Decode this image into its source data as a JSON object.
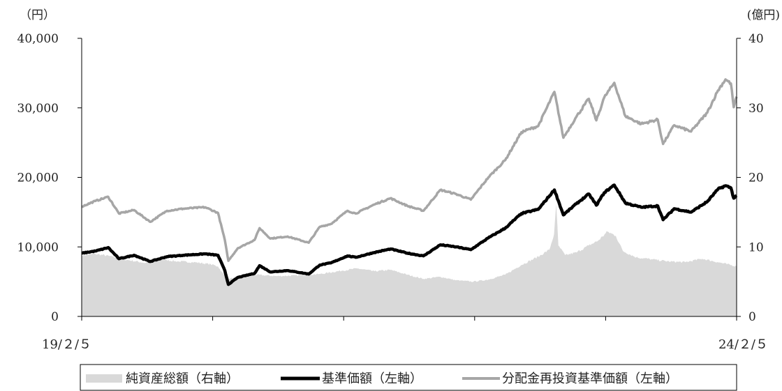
{
  "chart_data": {
    "type": "line",
    "left_axis": {
      "unit": "（円）",
      "ylim": [
        0,
        40000
      ],
      "ticks": [
        "0",
        "10,000",
        "20,000",
        "30,000",
        "40,000"
      ],
      "tick_values": [
        0,
        10000,
        20000,
        30000,
        40000
      ]
    },
    "right_axis": {
      "unit": "(億円)",
      "ylim": [
        0,
        40
      ],
      "ticks": [
        "0",
        "10",
        "20",
        "30",
        "40"
      ],
      "tick_values": [
        0,
        10,
        20,
        30,
        40
      ]
    },
    "x_labels": [
      "19/２/５",
      "24/２/５"
    ],
    "x_range": [
      "2019-02-05",
      "2024-02-05"
    ],
    "x_gridlines": false,
    "legend_placement": "bottom",
    "series": [
      {
        "name": "純資産総額（右軸）",
        "kind": "area",
        "axis": "right",
        "color": "#d9d9d9",
        "points": [
          [
            "2019-02-05",
            8.8
          ],
          [
            "2019-03-15",
            9.0
          ],
          [
            "2019-05-01",
            8.6
          ],
          [
            "2019-06-15",
            8.1
          ],
          [
            "2019-08-01",
            7.7
          ],
          [
            "2019-09-15",
            8.2
          ],
          [
            "2019-11-01",
            7.9
          ],
          [
            "2019-12-15",
            7.8
          ],
          [
            "2020-01-31",
            7.5
          ],
          [
            "2020-02-20",
            7.2
          ],
          [
            "2020-03-15",
            5.4
          ],
          [
            "2020-04-15",
            5.6
          ],
          [
            "2020-06-01",
            6.0
          ],
          [
            "2020-08-01",
            5.8
          ],
          [
            "2020-10-01",
            5.9
          ],
          [
            "2020-12-01",
            6.1
          ],
          [
            "2021-02-01",
            6.6
          ],
          [
            "2021-03-15",
            6.9
          ],
          [
            "2021-05-01",
            6.5
          ],
          [
            "2021-06-15",
            6.7
          ],
          [
            "2021-08-01",
            6.0
          ],
          [
            "2021-09-15",
            5.4
          ],
          [
            "2021-11-01",
            5.7
          ],
          [
            "2021-12-15",
            5.2
          ],
          [
            "2022-02-01",
            5.0
          ],
          [
            "2022-03-15",
            5.3
          ],
          [
            "2022-05-01",
            6.0
          ],
          [
            "2022-06-15",
            7.4
          ],
          [
            "2022-08-01",
            8.6
          ],
          [
            "2022-09-01",
            9.6
          ],
          [
            "2022-09-14",
            11.8
          ],
          [
            "2022-09-20",
            16.2
          ],
          [
            "2022-09-26",
            10.2
          ],
          [
            "2022-10-15",
            8.8
          ],
          [
            "2022-11-15",
            9.2
          ],
          [
            "2022-12-20",
            10.2
          ],
          [
            "2023-01-15",
            10.9
          ],
          [
            "2023-02-10",
            12.2
          ],
          [
            "2023-03-05",
            11.6
          ],
          [
            "2023-03-25",
            9.4
          ],
          [
            "2023-05-01",
            8.5
          ],
          [
            "2023-06-15",
            8.2
          ],
          [
            "2023-08-01",
            7.9
          ],
          [
            "2023-09-15",
            7.8
          ],
          [
            "2023-11-01",
            8.3
          ],
          [
            "2023-12-15",
            7.8
          ],
          [
            "2024-02-05",
            7.2
          ]
        ]
      },
      {
        "name": "基準価額（左軸）",
        "kind": "line",
        "axis": "left",
        "color": "#000000",
        "points": [
          [
            "2019-02-05",
            9100
          ],
          [
            "2019-03-15",
            9400
          ],
          [
            "2019-04-20",
            9900
          ],
          [
            "2019-05-20",
            8300
          ],
          [
            "2019-07-01",
            8800
          ],
          [
            "2019-08-15",
            7900
          ],
          [
            "2019-10-01",
            8600
          ],
          [
            "2019-11-15",
            8800
          ],
          [
            "2020-01-15",
            9000
          ],
          [
            "2020-02-20",
            8800
          ],
          [
            "2020-03-10",
            6600
          ],
          [
            "2020-03-20",
            4600
          ],
          [
            "2020-04-15",
            5600
          ],
          [
            "2020-06-01",
            6200
          ],
          [
            "2020-06-15",
            7300
          ],
          [
            "2020-07-15",
            6400
          ],
          [
            "2020-09-01",
            6600
          ],
          [
            "2020-10-30",
            6100
          ],
          [
            "2020-11-30",
            7400
          ],
          [
            "2020-12-31",
            7700
          ],
          [
            "2021-02-15",
            8700
          ],
          [
            "2021-03-10",
            8500
          ],
          [
            "2021-05-01",
            9200
          ],
          [
            "2021-06-15",
            9700
          ],
          [
            "2021-08-01",
            9100
          ],
          [
            "2021-09-15",
            8700
          ],
          [
            "2021-11-01",
            10300
          ],
          [
            "2021-12-15",
            10000
          ],
          [
            "2022-01-25",
            9600
          ],
          [
            "2022-03-15",
            11300
          ],
          [
            "2022-05-01",
            12700
          ],
          [
            "2022-06-15",
            14800
          ],
          [
            "2022-08-01",
            15400
          ],
          [
            "2022-09-15",
            18200
          ],
          [
            "2022-10-10",
            14600
          ],
          [
            "2022-11-15",
            16200
          ],
          [
            "2022-12-20",
            17600
          ],
          [
            "2023-01-10",
            16000
          ],
          [
            "2023-02-01",
            17800
          ],
          [
            "2023-03-01",
            18900
          ],
          [
            "2023-04-01",
            16300
          ],
          [
            "2023-05-15",
            15700
          ],
          [
            "2023-06-30",
            15900
          ],
          [
            "2023-07-15",
            13900
          ],
          [
            "2023-08-15",
            15500
          ],
          [
            "2023-10-01",
            15000
          ],
          [
            "2023-11-15",
            16500
          ],
          [
            "2023-12-15",
            18300
          ],
          [
            "2024-01-05",
            18800
          ],
          [
            "2024-01-20",
            18500
          ],
          [
            "2024-01-28",
            17000
          ],
          [
            "2024-02-05",
            17400
          ]
        ]
      },
      {
        "name": "分配金再投資基準価額（左軸）",
        "kind": "line",
        "axis": "left",
        "color": "#a6a6a6",
        "points": [
          [
            "2019-02-05",
            15800
          ],
          [
            "2019-03-15",
            16600
          ],
          [
            "2019-04-20",
            17200
          ],
          [
            "2019-05-20",
            14800
          ],
          [
            "2019-07-01",
            15300
          ],
          [
            "2019-08-15",
            13600
          ],
          [
            "2019-10-01",
            15200
          ],
          [
            "2019-11-15",
            15500
          ],
          [
            "2020-01-15",
            15700
          ],
          [
            "2020-02-20",
            14900
          ],
          [
            "2020-03-10",
            11000
          ],
          [
            "2020-03-20",
            8000
          ],
          [
            "2020-04-15",
            9800
          ],
          [
            "2020-06-01",
            11000
          ],
          [
            "2020-06-15",
            12700
          ],
          [
            "2020-07-15",
            11200
          ],
          [
            "2020-09-01",
            11500
          ],
          [
            "2020-10-30",
            10600
          ],
          [
            "2020-11-30",
            12900
          ],
          [
            "2020-12-31",
            13300
          ],
          [
            "2021-02-15",
            15200
          ],
          [
            "2021-03-10",
            14800
          ],
          [
            "2021-05-01",
            16100
          ],
          [
            "2021-06-15",
            17000
          ],
          [
            "2021-08-01",
            15900
          ],
          [
            "2021-09-15",
            15200
          ],
          [
            "2021-11-01",
            18200
          ],
          [
            "2021-12-15",
            17600
          ],
          [
            "2022-01-25",
            16800
          ],
          [
            "2022-03-15",
            20000
          ],
          [
            "2022-05-01",
            22500
          ],
          [
            "2022-06-15",
            26500
          ],
          [
            "2022-08-01",
            27400
          ],
          [
            "2022-09-15",
            32300
          ],
          [
            "2022-10-10",
            25700
          ],
          [
            "2022-11-15",
            28700
          ],
          [
            "2022-12-20",
            31300
          ],
          [
            "2023-01-10",
            28200
          ],
          [
            "2023-02-01",
            31500
          ],
          [
            "2023-03-01",
            33600
          ],
          [
            "2023-04-01",
            28800
          ],
          [
            "2023-05-15",
            27700
          ],
          [
            "2023-06-30",
            28300
          ],
          [
            "2023-07-15",
            24800
          ],
          [
            "2023-08-15",
            27500
          ],
          [
            "2023-10-01",
            26600
          ],
          [
            "2023-11-15",
            29300
          ],
          [
            "2023-12-15",
            32500
          ],
          [
            "2024-01-05",
            34100
          ],
          [
            "2024-01-20",
            33500
          ],
          [
            "2024-01-28",
            30100
          ],
          [
            "2024-02-05",
            31600
          ]
        ]
      }
    ]
  }
}
